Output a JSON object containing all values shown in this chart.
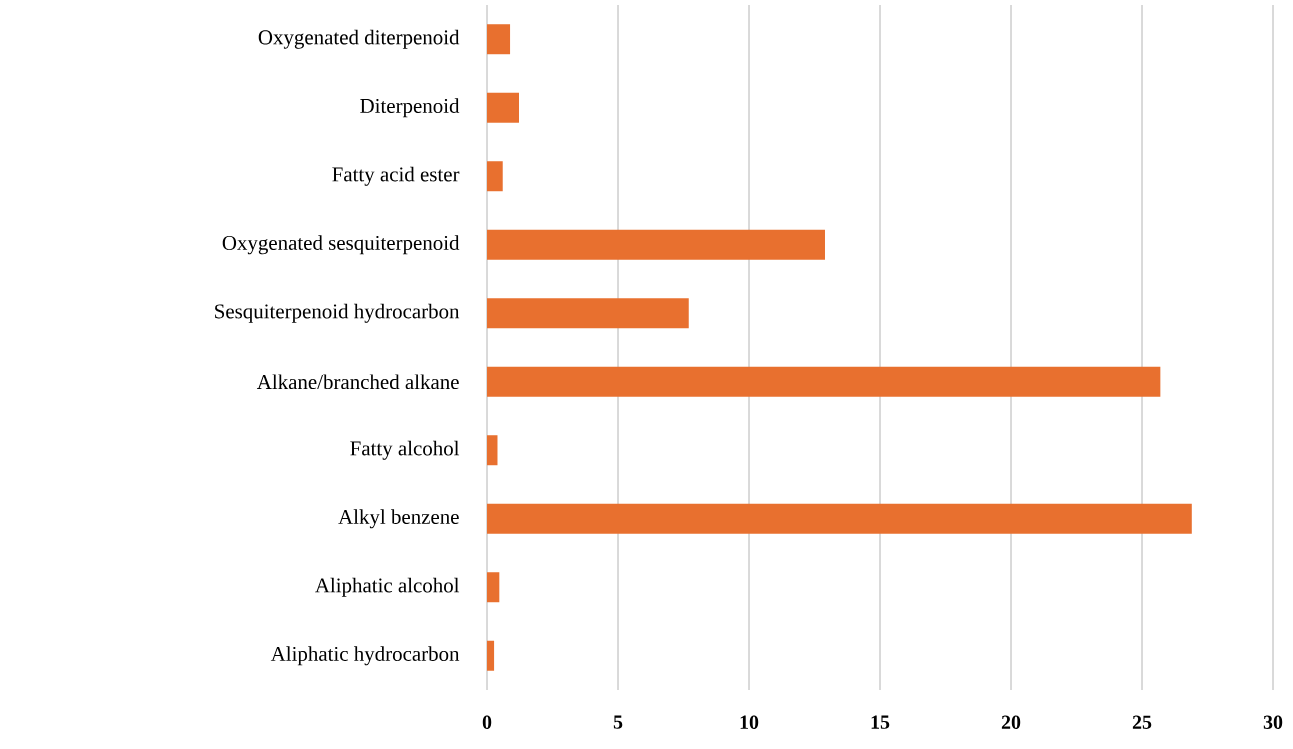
{
  "chart_data": {
    "type": "bar",
    "orientation": "horizontal",
    "categories": [
      "Oxygenated diterpenoid",
      "Diterpenoid",
      "Fatty acid ester",
      "Oxygenated sesquiterpenoid",
      "Sesquiterpenoid hydrocarbon",
      "Alkane/branched alkane",
      "Fatty alcohol",
      "Alkyl benzene",
      "Aliphatic alcohol",
      "Aliphatic hydrocarbon"
    ],
    "values": [
      0.88,
      1.22,
      0.6,
      12.9,
      7.7,
      25.7,
      0.4,
      26.9,
      0.47,
      0.27
    ],
    "color": "#e8702f",
    "xlim": [
      0,
      30
    ],
    "xticks": [
      0,
      5,
      10,
      15,
      20,
      25,
      30
    ],
    "grid": "x"
  }
}
